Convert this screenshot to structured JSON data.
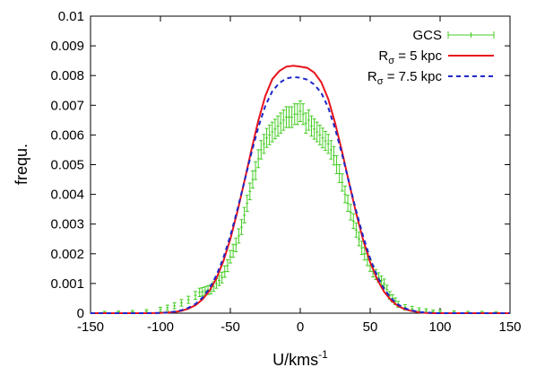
{
  "chart_data": {
    "type": "line",
    "xlabel": "U/kms",
    "xlabel_sup": "-1",
    "ylabel": "frequ.",
    "xlim": [
      -150,
      150
    ],
    "ylim": [
      0,
      0.01
    ],
    "xticks": [
      -150,
      -100,
      -50,
      0,
      50,
      100,
      150
    ],
    "xtick_labels": [
      "-150",
      "-100",
      "-50",
      "0",
      "50",
      "100",
      "150"
    ],
    "yticks": [
      0,
      0.001,
      0.002,
      0.003,
      0.004,
      0.005,
      0.006,
      0.007,
      0.008,
      0.009,
      0.01
    ],
    "ytick_labels": [
      "0",
      "0.001",
      "0.002",
      "0.003",
      "0.004",
      "0.005",
      "0.006",
      "0.007",
      "0.008",
      "0.009",
      "0.01"
    ],
    "grid": false,
    "legend_position": "top-right",
    "series": [
      {
        "name": "GCS",
        "kind": "errorbar",
        "color": "#44cc22",
        "x": [
          -140,
          -130,
          -120,
          -110,
          -100,
          -95,
          -90,
          -85,
          -80,
          -75,
          -72,
          -70,
          -68,
          -66,
          -64,
          -62,
          -60,
          -58,
          -56,
          -54,
          -52,
          -50,
          -48,
          -46,
          -44,
          -42,
          -40,
          -38,
          -36,
          -34,
          -32,
          -30,
          -28,
          -26,
          -24,
          -22,
          -20,
          -18,
          -16,
          -14,
          -12,
          -10,
          -8,
          -6,
          -4,
          -2,
          0,
          2,
          4,
          6,
          8,
          10,
          12,
          14,
          16,
          18,
          20,
          22,
          24,
          26,
          28,
          30,
          32,
          34,
          36,
          38,
          40,
          42,
          44,
          46,
          48,
          50,
          52,
          54,
          56,
          58,
          60,
          62,
          64,
          66,
          68,
          70,
          75,
          80,
          85,
          90,
          95,
          100,
          110,
          120,
          130,
          140
        ],
        "y": [
          2e-05,
          3e-05,
          4e-05,
          6e-05,
          0.00012,
          0.00018,
          0.00025,
          0.00035,
          0.00045,
          0.0006,
          0.0007,
          0.00072,
          0.00075,
          0.00078,
          0.0008,
          0.0009,
          0.001,
          0.0011,
          0.0012,
          0.0014,
          0.0016,
          0.0019,
          0.0021,
          0.0023,
          0.0026,
          0.0029,
          0.0033,
          0.0037,
          0.0041,
          0.0045,
          0.0048,
          0.0052,
          0.0055,
          0.0057,
          0.0059,
          0.006,
          0.0061,
          0.0062,
          0.0063,
          0.0064,
          0.0065,
          0.0066,
          0.0066,
          0.0066,
          0.0067,
          0.0067,
          0.0068,
          0.0067,
          0.0064,
          0.0065,
          0.0063,
          0.0062,
          0.0061,
          0.006,
          0.0059,
          0.0058,
          0.0057,
          0.0055,
          0.0053,
          0.005,
          0.0047,
          0.0044,
          0.004,
          0.0037,
          0.0034,
          0.0031,
          0.0028,
          0.0025,
          0.0022,
          0.002,
          0.0018,
          0.0016,
          0.0014,
          0.0013,
          0.0012,
          0.0011,
          0.001,
          0.0008,
          0.0006,
          0.0005,
          0.0004,
          0.0003,
          0.0002,
          0.00015,
          0.0001,
          8e-05,
          5e-05,
          4e-05,
          3e-05,
          2e-05,
          2e-05,
          1e-05
        ],
        "yerr": [
          4e-05,
          4e-05,
          5e-05,
          6e-05,
          8e-05,
          9e-05,
          0.0001,
          0.00011,
          0.00012,
          0.00013,
          0.00014,
          0.00014,
          0.00014,
          0.00015,
          0.00015,
          0.00016,
          0.00016,
          0.00017,
          0.00018,
          0.00019,
          0.0002,
          0.00021,
          0.00022,
          0.00023,
          0.00024,
          0.00025,
          0.00026,
          0.00027,
          0.00028,
          0.00029,
          0.0003,
          0.0003,
          0.00031,
          0.00032,
          0.00032,
          0.00033,
          0.00033,
          0.00033,
          0.00034,
          0.00034,
          0.00034,
          0.00035,
          0.00035,
          0.00035,
          0.00035,
          0.00035,
          0.00035,
          0.00035,
          0.00034,
          0.00034,
          0.00034,
          0.00034,
          0.00033,
          0.00033,
          0.00033,
          0.00032,
          0.00032,
          0.00031,
          0.00031,
          0.0003,
          0.0003,
          0.00029,
          0.00028,
          0.00027,
          0.00026,
          0.00025,
          0.00024,
          0.00023,
          0.00022,
          0.00021,
          0.0002,
          0.00019,
          0.00018,
          0.00017,
          0.00016,
          0.00015,
          0.00015,
          0.00014,
          0.00013,
          0.00012,
          0.00011,
          0.0001,
          9e-05,
          8e-05,
          8e-05,
          7e-05,
          6e-05,
          6e-05,
          5e-05,
          4e-05,
          4e-05,
          4e-05
        ]
      },
      {
        "name": "R",
        "name_sub": "σ",
        "name_rest": " = 5 kpc",
        "kind": "line",
        "color": "#e8141c",
        "dash": "none",
        "x": [
          -150,
          -140,
          -130,
          -120,
          -110,
          -100,
          -95,
          -90,
          -85,
          -80,
          -75,
          -70,
          -65,
          -60,
          -55,
          -50,
          -45,
          -40,
          -35,
          -30,
          -25,
          -20,
          -15,
          -10,
          -5,
          0,
          5,
          10,
          15,
          20,
          25,
          30,
          35,
          40,
          45,
          50,
          55,
          60,
          65,
          70,
          75,
          80,
          85,
          90,
          95,
          100,
          110,
          120,
          130,
          140,
          150
        ],
        "y": [
          0,
          0,
          0,
          0,
          0,
          1e-05,
          2e-05,
          4e-05,
          8e-05,
          0.00015,
          0.00027,
          0.00046,
          0.00075,
          0.00117,
          0.00175,
          0.0025,
          0.00341,
          0.00443,
          0.00548,
          0.00648,
          0.00731,
          0.00788,
          0.00815,
          0.0083,
          0.00833,
          0.0083,
          0.00826,
          0.0081,
          0.00778,
          0.00721,
          0.00639,
          0.00542,
          0.00437,
          0.00336,
          0.00246,
          0.00172,
          0.00114,
          0.00072,
          0.00043,
          0.00024,
          0.00013,
          7e-05,
          3e-05,
          1e-05,
          0,
          0,
          0,
          0,
          0,
          0,
          0
        ]
      },
      {
        "name": "R",
        "name_sub": "σ",
        "name_rest": " = 7.5 kpc",
        "kind": "line",
        "color": "#1e28c8",
        "dash": "5,4",
        "x": [
          -150,
          -140,
          -130,
          -120,
          -110,
          -100,
          -95,
          -90,
          -85,
          -80,
          -75,
          -70,
          -65,
          -60,
          -55,
          -50,
          -45,
          -40,
          -35,
          -30,
          -25,
          -20,
          -15,
          -10,
          -5,
          0,
          5,
          10,
          15,
          20,
          25,
          30,
          35,
          40,
          45,
          50,
          55,
          60,
          65,
          70,
          75,
          80,
          85,
          90,
          95,
          100,
          110,
          120,
          130,
          140,
          150
        ],
        "y": [
          0,
          0,
          0,
          0,
          0,
          1e-05,
          2e-05,
          5e-05,
          0.0001,
          0.00018,
          0.00031,
          0.00052,
          0.00083,
          0.00127,
          0.00186,
          0.0026,
          0.00348,
          0.00443,
          0.00538,
          0.00626,
          0.00698,
          0.00747,
          0.00775,
          0.0079,
          0.00795,
          0.00793,
          0.00786,
          0.0077,
          0.00742,
          0.00692,
          0.0062,
          0.00533,
          0.00438,
          0.00344,
          0.00258,
          0.00184,
          0.00125,
          0.00081,
          0.0005,
          0.00029,
          0.00016,
          9e-05,
          4e-05,
          2e-05,
          1e-05,
          0,
          0,
          0,
          0,
          0,
          0
        ]
      }
    ]
  }
}
